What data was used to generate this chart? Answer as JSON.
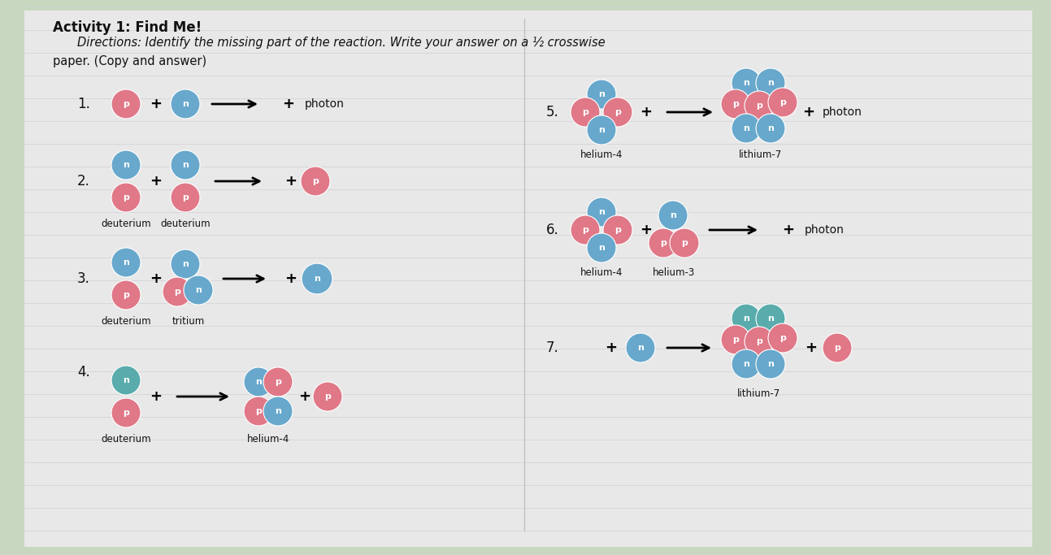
{
  "title": "Activity 1: Find Me!",
  "directions_italic": "Directions: Identify the missing part of the reaction. Write your answer on a ½ crosswise",
  "subtitle": "paper. (Copy and answer)",
  "bg_color": "#c8d8c0",
  "paper_color": "#ececec",
  "pink": "#e07888",
  "blue": "#68a8cc",
  "teal": "#5aacac",
  "line_color": "#d0d0d8"
}
